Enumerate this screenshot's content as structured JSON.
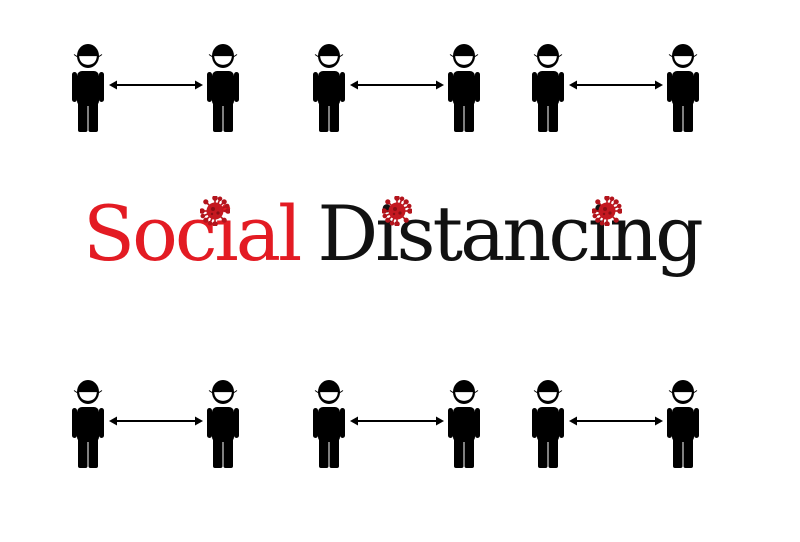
{
  "headline": {
    "word_1": "Social",
    "word_2": "Distancing"
  },
  "colors": {
    "accent": "#e31b23",
    "text": "#111111",
    "figure": "#000000",
    "virus": "#b3141c",
    "background": "#ffffff"
  },
  "icons": {
    "person": "masked-person-icon",
    "distance": "double-arrow-icon",
    "virus": "coronavirus-icon"
  }
}
